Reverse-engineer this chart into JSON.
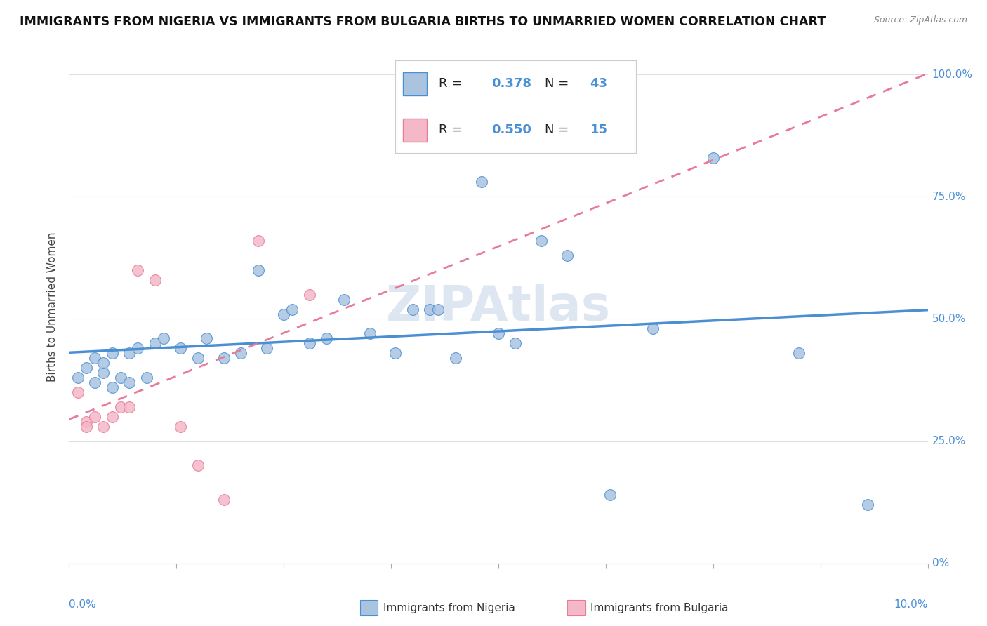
{
  "title": "IMMIGRANTS FROM NIGERIA VS IMMIGRANTS FROM BULGARIA BIRTHS TO UNMARRIED WOMEN CORRELATION CHART",
  "source": "Source: ZipAtlas.com",
  "ylabel": "Births to Unmarried Women",
  "xlim": [
    0.0,
    0.1
  ],
  "ylim": [
    0.0,
    1.05
  ],
  "nigeria_R": 0.378,
  "nigeria_N": 43,
  "bulgaria_R": 0.55,
  "bulgaria_N": 15,
  "nigeria_scatter_color": "#aac4e0",
  "nigeria_line_color": "#4a8fd4",
  "bulgaria_scatter_color": "#f4b8c8",
  "bulgaria_line_color": "#e87a9a",
  "nigeria_x": [
    0.001,
    0.002,
    0.003,
    0.003,
    0.004,
    0.004,
    0.005,
    0.005,
    0.006,
    0.007,
    0.007,
    0.008,
    0.009,
    0.01,
    0.011,
    0.013,
    0.015,
    0.016,
    0.018,
    0.02,
    0.022,
    0.023,
    0.025,
    0.026,
    0.028,
    0.03,
    0.032,
    0.035,
    0.038,
    0.04,
    0.042,
    0.043,
    0.045,
    0.048,
    0.05,
    0.052,
    0.055,
    0.058,
    0.063,
    0.068,
    0.075,
    0.085,
    0.093
  ],
  "nigeria_y": [
    0.38,
    0.4,
    0.37,
    0.42,
    0.39,
    0.41,
    0.36,
    0.43,
    0.38,
    0.43,
    0.37,
    0.44,
    0.38,
    0.45,
    0.46,
    0.44,
    0.42,
    0.46,
    0.42,
    0.43,
    0.6,
    0.44,
    0.51,
    0.52,
    0.45,
    0.46,
    0.54,
    0.47,
    0.43,
    0.52,
    0.52,
    0.52,
    0.42,
    0.78,
    0.47,
    0.45,
    0.66,
    0.63,
    0.14,
    0.48,
    0.83,
    0.43,
    0.12
  ],
  "bulgaria_x": [
    0.001,
    0.002,
    0.002,
    0.003,
    0.004,
    0.005,
    0.006,
    0.007,
    0.008,
    0.01,
    0.013,
    0.015,
    0.018,
    0.022,
    0.028
  ],
  "bulgaria_y": [
    0.35,
    0.29,
    0.28,
    0.3,
    0.28,
    0.3,
    0.32,
    0.32,
    0.6,
    0.58,
    0.28,
    0.2,
    0.13,
    0.66,
    0.55
  ],
  "background_color": "#ffffff",
  "grid_color": "#e0e0e0",
  "title_fontsize": 12.5,
  "axis_fontsize": 11,
  "legend_fontsize": 13,
  "watermark_color": "#c8d8e8",
  "watermark_fontsize": 50
}
